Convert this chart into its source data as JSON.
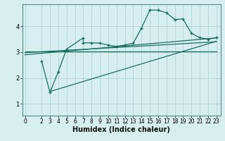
{
  "bg_color": "#d7eeee",
  "grid_color": "#b8d8d8",
  "line_color": "#1a6e60",
  "xlabel": "Humidex (Indice chaleur)",
  "xlabel_fontsize": 7,
  "yticks": [
    1,
    2,
    3,
    4
  ],
  "xticks": [
    0,
    2,
    3,
    4,
    5,
    6,
    7,
    8,
    9,
    10,
    11,
    12,
    13,
    14,
    15,
    16,
    17,
    18,
    19,
    20,
    21,
    22,
    23
  ],
  "xlim": [
    -0.3,
    23.5
  ],
  "ylim": [
    0.55,
    4.85
  ],
  "line1_x": [
    2,
    3,
    4,
    5,
    7,
    7,
    8,
    9,
    10,
    11,
    12,
    13,
    14,
    15,
    16,
    17,
    18,
    19,
    20,
    21,
    22,
    23
  ],
  "line1_y": [
    2.65,
    1.45,
    2.25,
    3.12,
    3.55,
    3.36,
    3.36,
    3.35,
    3.27,
    3.22,
    3.28,
    3.34,
    3.93,
    4.62,
    4.62,
    4.52,
    4.26,
    4.28,
    3.73,
    3.56,
    3.5,
    3.56
  ],
  "line2_x": [
    0,
    23
  ],
  "line2_y": [
    3.02,
    3.02
  ],
  "line3_x": [
    0,
    23
  ],
  "line3_y": [
    2.98,
    3.4
  ],
  "line4_x": [
    0,
    23
  ],
  "line4_y": [
    2.9,
    3.55
  ],
  "line5_x": [
    3,
    23
  ],
  "line5_y": [
    1.48,
    3.42
  ]
}
